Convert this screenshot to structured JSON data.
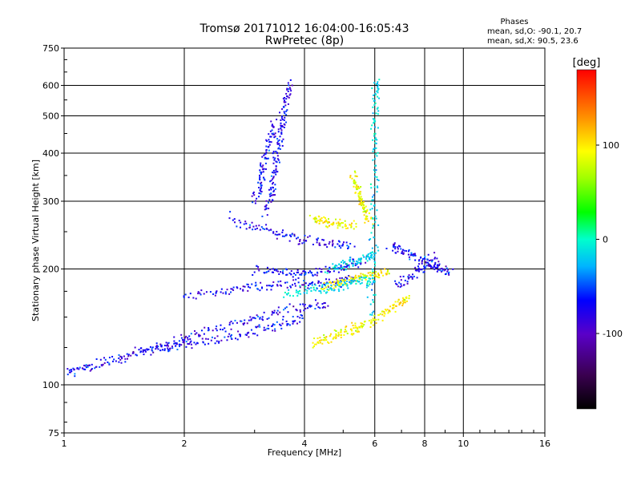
{
  "chart_data": {
    "type": "scatter",
    "title": "Tromsø 20171012 16:04:00-16:05:43",
    "subtitle": "RwPretec (8p)",
    "xlabel": "Frequency [MHz]",
    "ylabel": "Stationary phase Virtual Height [km]",
    "x_scale": "log",
    "y_scale": "log",
    "xlim": [
      1,
      16
    ],
    "ylim": [
      75,
      750
    ],
    "grid": true,
    "x_ticks": [
      1,
      2,
      4,
      6,
      8,
      10,
      16
    ],
    "x_tick_labels": [
      "1",
      "2",
      "4",
      "6",
      "8",
      "10",
      "16"
    ],
    "y_ticks": [
      75,
      100,
      200,
      300,
      400,
      500,
      600,
      750
    ],
    "y_tick_labels": [
      "75",
      "100",
      "200",
      "300",
      "400",
      "500",
      "600",
      "750"
    ],
    "phase_stats": {
      "title": "Phases",
      "line_o": "mean, sd,O: -90.1, 20.7",
      "line_x": "mean, sd,X:  90.5, 23.6"
    },
    "colorbar": {
      "label": "[deg]",
      "range": [
        -180,
        180
      ],
      "tick_values": [
        -100,
        0,
        100
      ],
      "tick_labels": [
        "-100",
        "0",
        "100"
      ],
      "colormap": "black-purple-blue-cyan-green-yellow-orange-red"
    },
    "series": [
      {
        "mode": "O (blue/purple, about -90 deg)",
        "phase": -90,
        "traces": [
          {
            "points": [
              [
                1.02,
                108
              ],
              [
                1.1,
                110
              ],
              [
                1.2,
                113
              ],
              [
                1.35,
                116
              ],
              [
                1.5,
                120
              ],
              [
                1.7,
                124
              ],
              [
                1.9,
                126
              ],
              [
                2.1,
                128
              ],
              [
                2.4,
                131
              ],
              [
                2.8,
                135
              ],
              [
                3.2,
                140
              ],
              [
                3.6,
                144
              ],
              [
                4.0,
                148
              ]
            ]
          },
          {
            "points": [
              [
                1.5,
                122
              ],
              [
                1.8,
                126
              ],
              [
                2.0,
                132
              ],
              [
                2.3,
                138
              ],
              [
                2.7,
                145
              ],
              [
                3.1,
                150
              ],
              [
                3.6,
                156
              ],
              [
                4.1,
                160
              ],
              [
                4.6,
                162
              ]
            ]
          },
          {
            "points": [
              [
                2.0,
                170
              ],
              [
                2.4,
                174
              ],
              [
                2.8,
                178
              ],
              [
                3.2,
                180
              ],
              [
                3.7,
                182
              ],
              [
                4.2,
                183
              ],
              [
                4.8,
                185
              ],
              [
                5.3,
                188
              ]
            ]
          },
          {
            "points": [
              [
                2.6,
                270
              ],
              [
                3.0,
                258
              ],
              [
                3.4,
                248
              ],
              [
                3.8,
                240
              ],
              [
                4.3,
                235
              ],
              [
                4.8,
                232
              ],
              [
                5.3,
                230
              ]
            ]
          },
          {
            "points": [
              [
                3.0,
                200
              ],
              [
                3.4,
                196
              ],
              [
                3.8,
                194
              ],
              [
                4.2,
                196
              ],
              [
                4.7,
                198
              ],
              [
                5.2,
                205
              ],
              [
                5.7,
                210
              ]
            ]
          },
          {
            "points": [
              [
                3.2,
                280
              ],
              [
                3.3,
                310
              ],
              [
                3.35,
                340
              ],
              [
                3.4,
                380
              ],
              [
                3.45,
                420
              ],
              [
                3.5,
                460
              ],
              [
                3.55,
                500
              ],
              [
                3.6,
                560
              ],
              [
                3.7,
                610
              ]
            ]
          },
          {
            "points": [
              [
                3.0,
                300
              ],
              [
                3.1,
                330
              ],
              [
                3.15,
                360
              ],
              [
                3.2,
                400
              ],
              [
                3.3,
                440
              ],
              [
                3.4,
                480
              ]
            ]
          },
          {
            "points": [
              [
                6.8,
                180
              ],
              [
                7.3,
                190
              ],
              [
                7.8,
                200
              ],
              [
                8.3,
                205
              ],
              [
                8.8,
                200
              ],
              [
                9.3,
                195
              ]
            ]
          },
          {
            "points": [
              [
                6.6,
                230
              ],
              [
                7.0,
                222
              ],
              [
                7.5,
                215
              ],
              [
                8.0,
                210
              ],
              [
                8.6,
                212
              ]
            ]
          }
        ]
      },
      {
        "mode": "X (yellow/orange, about +90 deg)",
        "phase": 90,
        "traces": [
          {
            "points": [
              [
                4.2,
                128
              ],
              [
                4.5,
                131
              ],
              [
                4.8,
                135
              ],
              [
                5.1,
                138
              ],
              [
                5.4,
                140
              ],
              [
                5.7,
                143
              ]
            ]
          },
          {
            "points": [
              [
                4.5,
                180
              ],
              [
                4.8,
                183
              ],
              [
                5.1,
                186
              ],
              [
                5.4,
                190
              ],
              [
                5.7,
                192
              ],
              [
                6.1,
                195
              ],
              [
                6.5,
                197
              ]
            ]
          },
          {
            "points": [
              [
                5.3,
                350
              ],
              [
                5.4,
                330
              ],
              [
                5.5,
                310
              ],
              [
                5.6,
                295
              ],
              [
                5.7,
                280
              ],
              [
                5.8,
                265
              ]
            ]
          },
          {
            "points": [
              [
                4.2,
                270
              ],
              [
                4.4,
                268
              ],
              [
                4.7,
                265
              ],
              [
                5.0,
                262
              ],
              [
                5.4,
                258
              ]
            ]
          },
          {
            "points": [
              [
                5.8,
                145
              ],
              [
                6.2,
                150
              ],
              [
                6.6,
                158
              ],
              [
                7.0,
                165
              ],
              [
                7.3,
                170
              ]
            ]
          }
        ]
      },
      {
        "mode": "mixed (cyan/green, about -30 to 20 deg)",
        "phase": -30,
        "traces": [
          {
            "points": [
              [
                3.6,
                170
              ],
              [
                4.0,
                175
              ],
              [
                4.4,
                178
              ],
              [
                4.8,
                180
              ],
              [
                5.2,
                183
              ],
              [
                5.6,
                185
              ],
              [
                6.0,
                188
              ]
            ]
          },
          {
            "points": [
              [
                4.6,
                200
              ],
              [
                5.0,
                205
              ],
              [
                5.4,
                210
              ],
              [
                5.8,
                215
              ],
              [
                6.0,
                220
              ]
            ]
          },
          {
            "points": [
              [
                5.9,
                150
              ],
              [
                5.92,
                200
              ],
              [
                5.95,
                260
              ],
              [
                5.98,
                320
              ],
              [
                6.0,
                400
              ],
              [
                6.02,
                480
              ],
              [
                6.05,
                560
              ],
              [
                6.1,
                620
              ]
            ]
          }
        ]
      }
    ]
  }
}
